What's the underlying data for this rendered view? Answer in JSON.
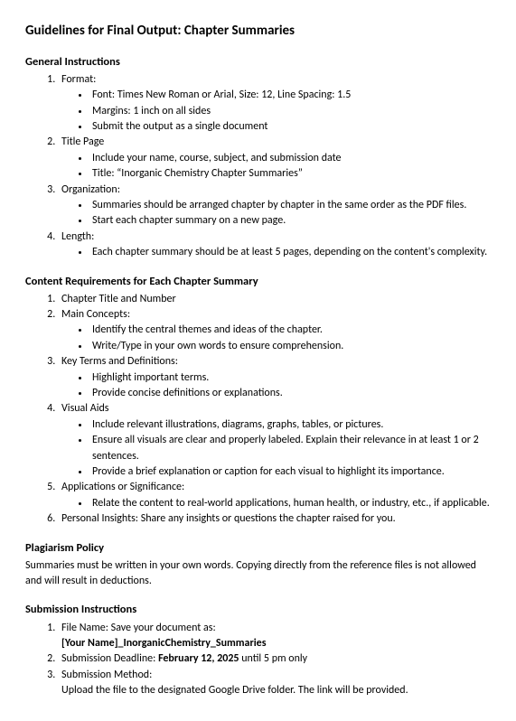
{
  "title": "Guidelines for Final Output: Chapter Summaries",
  "sections": {
    "general": {
      "heading": "General Instructions",
      "items": [
        {
          "label": "Format:",
          "bullets": [
            "Font: Times New Roman or Arial, Size: 12, Line Spacing: 1.5",
            "Margins: 1 inch on all sides",
            "Submit the output as a single document"
          ]
        },
        {
          "label": "Title Page",
          "bullets": [
            "Include your name, course, subject, and submission date",
            "Title: “Inorganic Chemistry Chapter Summaries”"
          ]
        },
        {
          "label": "Organization:",
          "bullets": [
            "Summaries should be arranged chapter by chapter in the same order as the PDF files.",
            "Start each chapter summary on a new page."
          ]
        },
        {
          "label": "Length:",
          "bullets": [
            "Each chapter summary should be at least 5 pages, depending on the content's complexity."
          ]
        }
      ]
    },
    "content": {
      "heading": "Content Requirements for Each Chapter Summary",
      "items": [
        {
          "label": "Chapter Title and Number",
          "bullets": []
        },
        {
          "label": "Main Concepts:",
          "bullets": [
            "Identify the central themes and ideas of the chapter.",
            "Write/Type in your own words to ensure comprehension."
          ]
        },
        {
          "label": "Key Terms and Definitions:",
          "bullets": [
            "Highlight important terms.",
            "Provide concise definitions or explanations."
          ]
        },
        {
          "label": "Visual Aids",
          "bullets": [
            "Include relevant illustrations, diagrams, graphs, tables, or pictures.",
            "Ensure all visuals are clear and properly labeled. Explain their relevance in at least 1 or 2 sentences.",
            "Provide a brief explanation or caption for each visual to highlight its importance."
          ]
        },
        {
          "label": "Applications or Significance:",
          "bullets": [
            "Relate the content to real-world applications, human health, or industry, etc., if applicable."
          ]
        },
        {
          "label": "Personal Insights: Share any insights or questions the chapter raised for you.",
          "bullets": []
        }
      ]
    },
    "plagiarism": {
      "heading": "Plagiarism Policy",
      "text": "Summaries must be written in your own words. Copying directly from the reference files is not allowed and will result in deductions."
    },
    "submission": {
      "heading": "Submission Instructions",
      "items": [
        {
          "label": "File Name: Save your document as:",
          "sub_bold": "[Your Name]_InorganicChemistry_Summaries"
        },
        {
          "label_pre": "Submission Deadline: ",
          "label_bold": "February 12, 2025",
          "label_post": " until 5 pm only"
        },
        {
          "label": "Submission Method:",
          "sub": "Upload the file to the designated Google Drive folder. The link will be provided."
        }
      ]
    }
  },
  "style": {
    "text_color": "#000000",
    "background": "#ffffff",
    "body_fontsize": 12,
    "h1_fontsize": 15,
    "h2_fontsize": 12.5,
    "line_height": 1.45
  }
}
